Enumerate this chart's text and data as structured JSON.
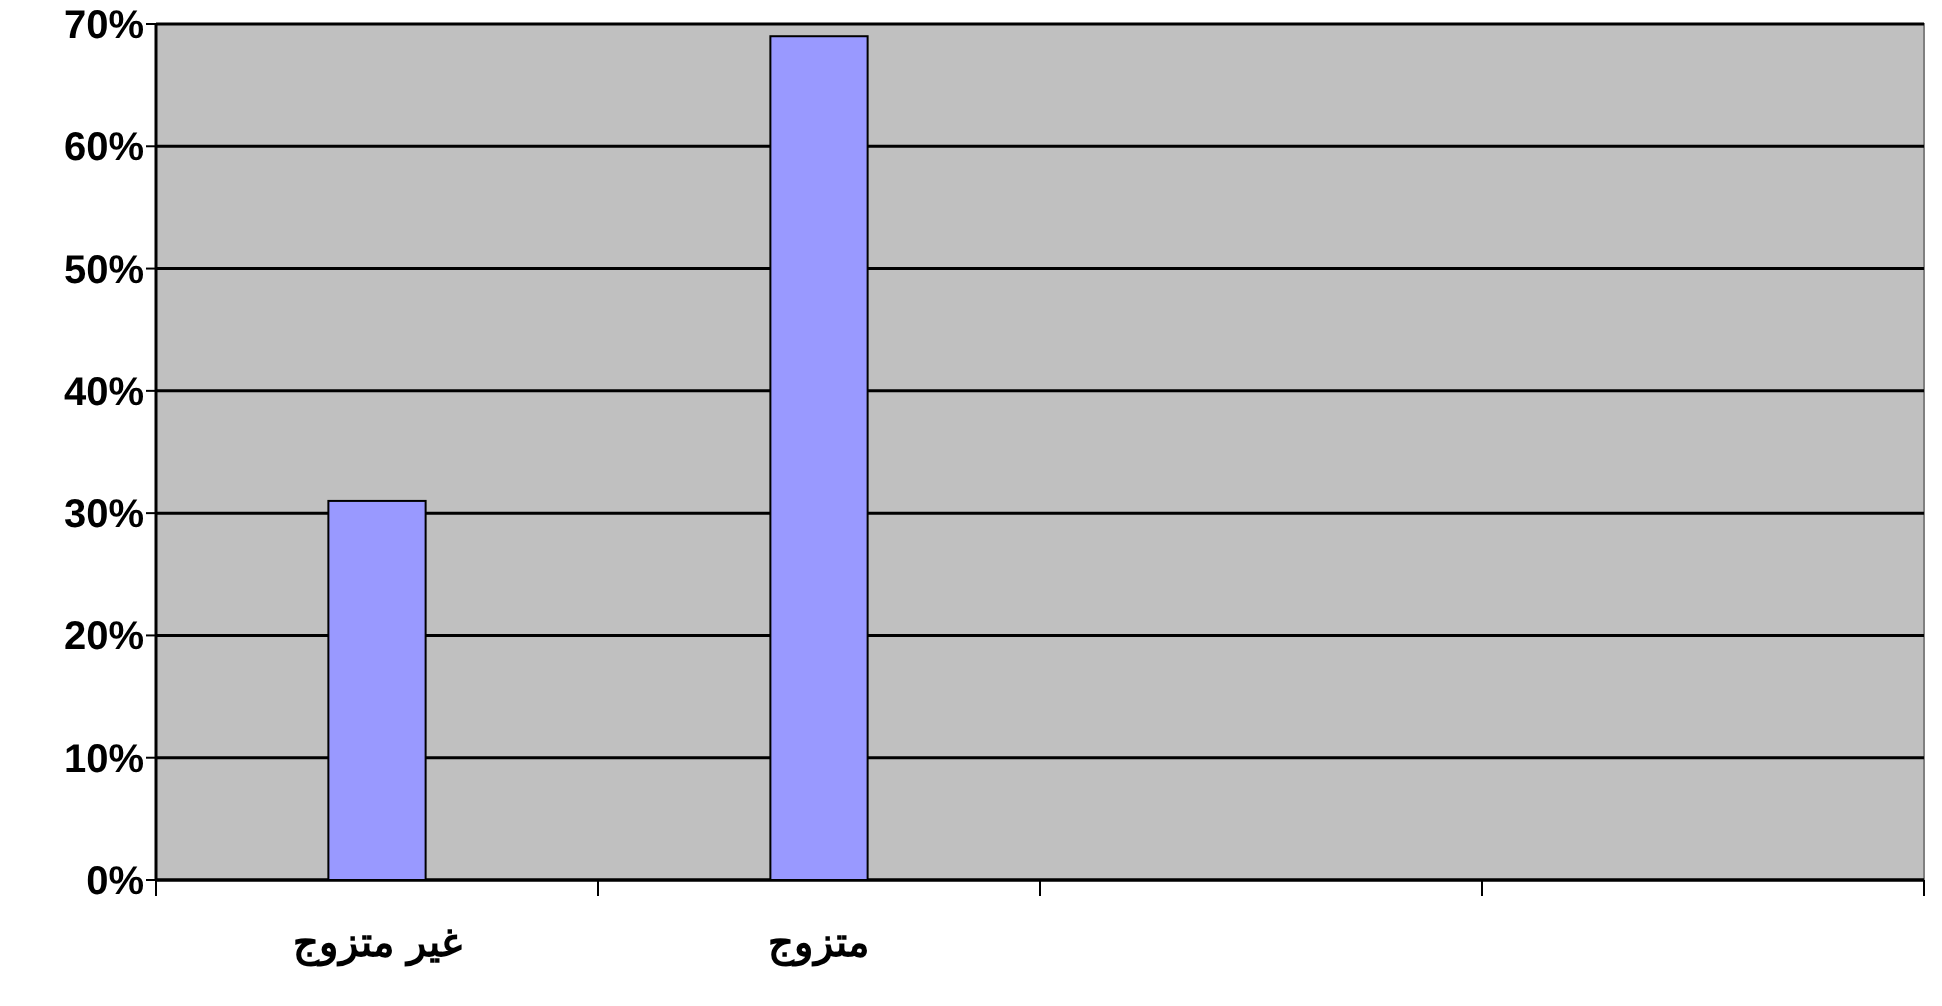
{
  "chart_data": {
    "type": "bar",
    "categories": [
      "غير متزوج",
      "متزوج",
      null,
      null
    ],
    "values": [
      31,
      69,
      null,
      null
    ],
    "color": "#9999ff",
    "ylim": [
      0,
      70
    ],
    "yticks": [
      {
        "value": 0,
        "label": "0%"
      },
      {
        "value": 10,
        "label": "10%"
      },
      {
        "value": 20,
        "label": "20%"
      },
      {
        "value": 30,
        "label": "30%"
      },
      {
        "value": 40,
        "label": "40%"
      },
      {
        "value": 50,
        "label": "50%"
      },
      {
        "value": 60,
        "label": "60%"
      },
      {
        "value": 70,
        "label": "70%"
      }
    ],
    "grid": "y"
  }
}
